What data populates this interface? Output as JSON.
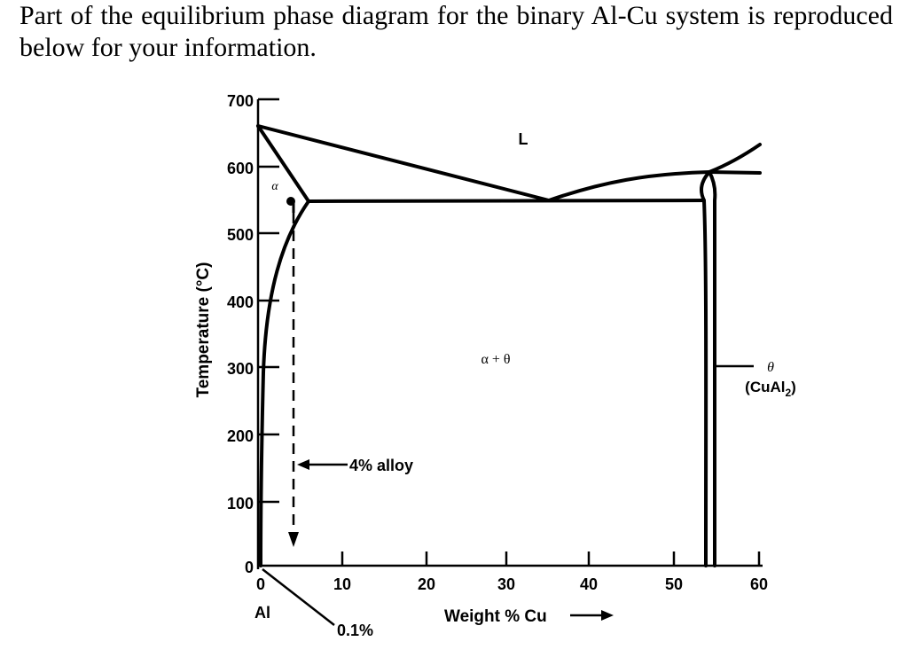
{
  "intro_text": "Part of the equilibrium phase diagram for the binary Al-Cu system is reproduced below for your information.",
  "diagram": {
    "y_axis_label": "Temperature (°C)",
    "y_ticks": [
      "700",
      "600",
      "500",
      "400",
      "300",
      "200",
      "100",
      "0"
    ],
    "x_ticks": [
      "0",
      "10",
      "20",
      "30",
      "40",
      "50",
      "60"
    ],
    "x_axis_label": "Weight % Cu",
    "al_label": "Al",
    "composition_label": "0.1%",
    "alloy_label": "4% alloy",
    "region_liquid": "L",
    "region_alpha": "α",
    "region_two_phase": "α + θ",
    "theta_symbol": "θ",
    "theta_formula_prefix": "(CuAl",
    "theta_formula_subscript": "2",
    "theta_formula_suffix": ")"
  }
}
